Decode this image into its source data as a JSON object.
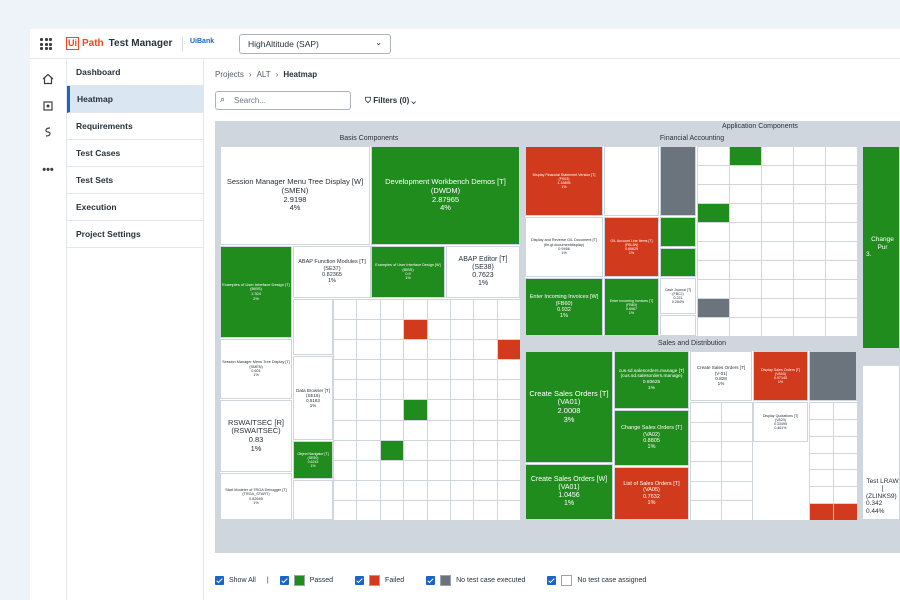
{
  "app": {
    "logo_ui": "Ui",
    "logo_path": "Path",
    "title": "Test Manager",
    "tenant": "UiBank",
    "project": "HighAltitude (SAP)"
  },
  "nav": [
    "Dashboard",
    "Heatmap",
    "Requirements",
    "Test Cases",
    "Test Sets",
    "Execution",
    "Project Settings"
  ],
  "breadcrumb": {
    "a": "Projects",
    "b": "ALT",
    "current": "Heatmap"
  },
  "search": {
    "placeholder": "Search..."
  },
  "filters": {
    "label": "Filters (0)"
  },
  "heatmap": {
    "root": "Application Components",
    "groups": {
      "basis": "Basis Components",
      "fin": "Financial Accounting",
      "sd": "Sales and Distribution"
    },
    "tiles": {
      "smen": [
        "Session Manager Menu Tree Display [W]",
        "(SMEN)",
        "2.9198",
        "4%"
      ],
      "dwdm": [
        "Development Workbench Demos [T]",
        "(DWDM)",
        "2.87965",
        "4%"
      ],
      "uidesign1": [
        "Examples of User Interface Design [T]",
        "(BIBS)",
        "1.324",
        "2%"
      ],
      "funcmod": [
        "ABAP Function Modules [T]",
        "(SE37)",
        "0.82365",
        "1%"
      ],
      "uidesign2": [
        "Examples of User Interface Design [W]",
        "(BIBS)",
        "0.9",
        "1%"
      ],
      "abapedit": [
        "ABAP Editor [T]",
        "(SE38)",
        "0.7623",
        "1%"
      ],
      "rswaitsec": [
        "RSWAITSEC [R]",
        "(RSWAITSEC)",
        "0.83",
        "1%"
      ],
      "databrowser": [
        "Data Browser [T]",
        "(SE16)",
        "0.5183",
        "1%"
      ],
      "objnav": [
        "Object Navigator [T]",
        "(SE80)",
        "0.6243",
        "1%"
      ],
      "smenmenu": [
        "Session Manager Menu Tree Display [T]",
        "(SMEN)",
        "0.601",
        "1%"
      ],
      "trga": [
        "Start Modeler of TRGA Debugger [T]",
        "(TRGA_START)",
        "0.82695",
        "1%"
      ],
      "fs03": [
        "Display Financial Statement Version [T]",
        "(FS03)",
        "1.15895",
        "1%"
      ],
      "glaccount": [
        "G/L Account Line Items [T]",
        "(FBL3N)",
        "0.85625",
        "1%"
      ],
      "displayreverse": [
        "Display and Reverse G/L Document [T]",
        "(fin.gl.documentdisplay)",
        "0.9466",
        "1%"
      ],
      "fb60": [
        "Enter Incoming Invoices [W]",
        "(FB60)",
        "0.932",
        "1%"
      ],
      "f43": [
        "Enter Incoming Invoices [T]",
        "(FB60)",
        "0.6967",
        "1%"
      ],
      "cashjournal": [
        "Cash Journal [T]",
        "(FBCJ)",
        "0.221",
        "0.264%"
      ],
      "va01big": [
        "Create Sales Orders [T]",
        "(VA01)",
        "2.0008",
        "3%"
      ],
      "va01w": [
        "Create Sales Orders [W]",
        "(VA01)",
        "1.0456",
        "1%"
      ],
      "cussales": [
        "cus.sd.salesorders.manage [T]",
        "(cus.sd.salesorders.manage)",
        "0.93625",
        "1%"
      ],
      "va02": [
        "Change Sales Orders [T]",
        "(VA02)",
        "0.8805",
        "1%"
      ],
      "va05": [
        "List of Sales Orders [T]",
        "(VA05)",
        "0.7632",
        "1%"
      ],
      "va01small": [
        "Create Sales Orders [T]",
        "(V-01)",
        "0.828",
        "1%"
      ],
      "va03": [
        "Display Sales Orders [T]",
        "(VA03)",
        "0.97145",
        "1%"
      ],
      "vs23": [
        "Display Quotations [T]",
        "(VA23)",
        "0.33495",
        "0.461%"
      ],
      "changepurch": [
        "Change Pur",
        "",
        "3.",
        ""
      ],
      "testlraw": [
        "Test LRAW [",
        "(ZLINKS9)",
        "0.342",
        "0.44%"
      ]
    }
  },
  "legend": {
    "show_all": "Show All",
    "sep": "|",
    "passed": "Passed",
    "failed": "Failed",
    "noexec": "No test case executed",
    "noassign": "No test case assigned"
  },
  "colors": {
    "passed": "#218c1e",
    "failed": "#d23a1d",
    "noexec": "#6b737d",
    "noassign": "#ffffff",
    "accent": "#1a63c7",
    "brand": "#fa4616"
  }
}
